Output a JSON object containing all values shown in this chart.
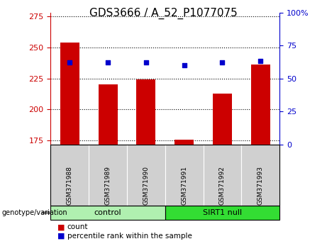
{
  "title": "GDS3666 / A_52_P1077075",
  "samples": [
    "GSM371988",
    "GSM371989",
    "GSM371990",
    "GSM371991",
    "GSM371992",
    "GSM371993"
  ],
  "red_values": [
    254,
    220,
    224,
    175.5,
    213,
    236
  ],
  "blue_values": [
    62,
    62,
    62,
    60,
    62,
    63
  ],
  "ylim_left": [
    172,
    278
  ],
  "ylim_right": [
    0,
    100
  ],
  "yticks_left": [
    175,
    200,
    225,
    250,
    275
  ],
  "yticks_right": [
    0,
    25,
    50,
    75,
    100
  ],
  "groups": [
    {
      "label": "control",
      "indices": [
        0,
        1,
        2
      ]
    },
    {
      "label": "SIRT1 null",
      "indices": [
        3,
        4,
        5
      ]
    }
  ],
  "group_colors": [
    "#b0f0b0",
    "#33dd33"
  ],
  "bar_color": "#cc0000",
  "dot_color": "#0000cc",
  "bar_bottom": 172,
  "bar_width": 0.5,
  "legend_count_label": "count",
  "legend_percentile_label": "percentile rank within the sample",
  "genotype_label": "genotype/variation",
  "tick_fontsize": 8,
  "title_fontsize": 11
}
